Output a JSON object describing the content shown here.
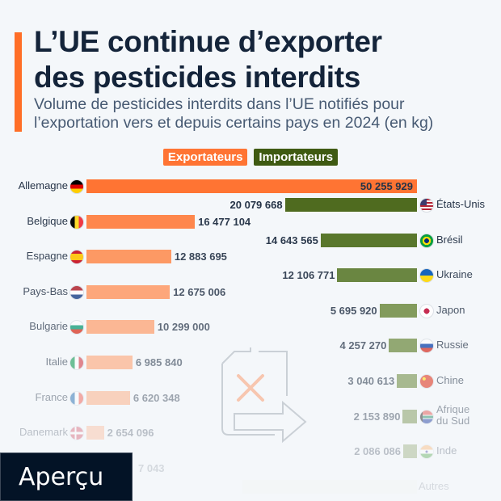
{
  "title": "L’UE continue d’exporter des pesticides interdits",
  "title_lines": [
    "L’UE continue d’exporter",
    "des pesticides interdits"
  ],
  "subtitle_lines": [
    "Volume de pesticides interdits dans l’UE notifiés pour",
    "l’exportation vers et depuis certains pays en 2024 (en kg)"
  ],
  "legend": {
    "exporters": "Exportateurs",
    "importers": "Importateurs"
  },
  "colors": {
    "exporters": "#ff7433",
    "importers": "#4f6b1f",
    "accent": "#ff6e27"
  },
  "overlay_label": "Aperçu",
  "illustration_icon": "pesticide-canister-crossed-arrow-icon",
  "chart_data": {
    "type": "bar",
    "unit": "kg",
    "exporters": [
      {
        "country": "Allemagne",
        "flag": "flag-de",
        "value": 50255929,
        "label": "50 255 929"
      },
      {
        "country": "Belgique",
        "flag": "flag-be",
        "value": 16477104,
        "label": "16 477 104"
      },
      {
        "country": "Espagne",
        "flag": "flag-es",
        "value": 12883695,
        "label": "12 883 695"
      },
      {
        "country": "Pays-Bas",
        "flag": "flag-nl",
        "value": 12675006,
        "label": "12 675 006"
      },
      {
        "country": "Bulgarie",
        "flag": "flag-bg",
        "value": 10299000,
        "label": "10 299 000"
      },
      {
        "country": "Italie",
        "flag": "flag-it",
        "value": 6985840,
        "label": "6 985 840"
      },
      {
        "country": "France",
        "flag": "flag-fr",
        "value": 6620348,
        "label": "6 620 348"
      },
      {
        "country": "Danemark",
        "flag": "flag-dk",
        "value": 2654096,
        "label": "2 654 096"
      },
      {
        "country": "",
        "flag": "",
        "value": null,
        "label": "7 043"
      }
    ],
    "importers": [
      {
        "country": "États-Unis",
        "flag": "flag-us",
        "value": 20079668,
        "label": "20 079 668"
      },
      {
        "country": "Brésil",
        "flag": "flag-br",
        "value": 14643565,
        "label": "14 643 565"
      },
      {
        "country": "Ukraine",
        "flag": "flag-ua",
        "value": 12106771,
        "label": "12 106 771"
      },
      {
        "country": "Japon",
        "flag": "flag-jp",
        "value": 5695920,
        "label": "5 695 920"
      },
      {
        "country": "Russie",
        "flag": "flag-ru",
        "value": 4257270,
        "label": "4 257 270"
      },
      {
        "country": "Chine",
        "flag": "flag-cn",
        "value": 3040613,
        "label": "3 040 613"
      },
      {
        "country": "Afrique du Sud",
        "country_lines": [
          "Afrique",
          "du Sud"
        ],
        "flag": "flag-za",
        "value": 2153890,
        "label": "2 153 890"
      },
      {
        "country": "Inde",
        "flag": "flag-in",
        "value": 2086086,
        "label": "2 086 086"
      },
      {
        "country": "Autres",
        "flag": "",
        "value": null,
        "label": ""
      }
    ]
  }
}
